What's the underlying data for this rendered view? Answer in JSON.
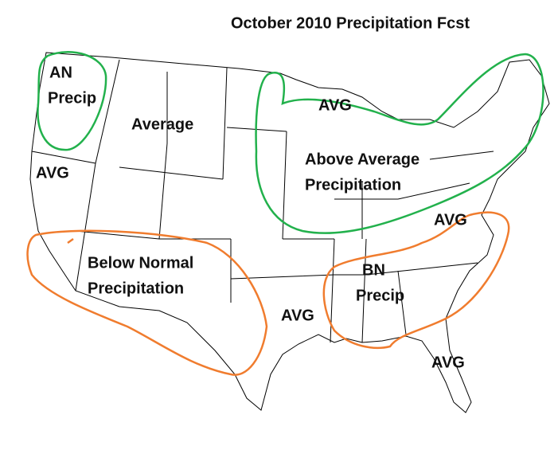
{
  "title": "October 2010 Precipitation Fcst",
  "regions": [
    {
      "lines": [
        "AN",
        "Precip"
      ]
    },
    {
      "lines": [
        "Average"
      ]
    },
    {
      "lines": [
        "AVG"
      ]
    },
    {
      "lines": [
        "AVG"
      ]
    },
    {
      "lines": [
        "Above Average",
        "Precipitation"
      ]
    },
    {
      "lines": [
        "AVG"
      ]
    },
    {
      "lines": [
        "Below Normal",
        "Precipitation"
      ]
    },
    {
      "lines": [
        "BN",
        "Precip"
      ]
    },
    {
      "lines": [
        "AVG"
      ]
    },
    {
      "lines": [
        "AVG"
      ]
    }
  ]
}
